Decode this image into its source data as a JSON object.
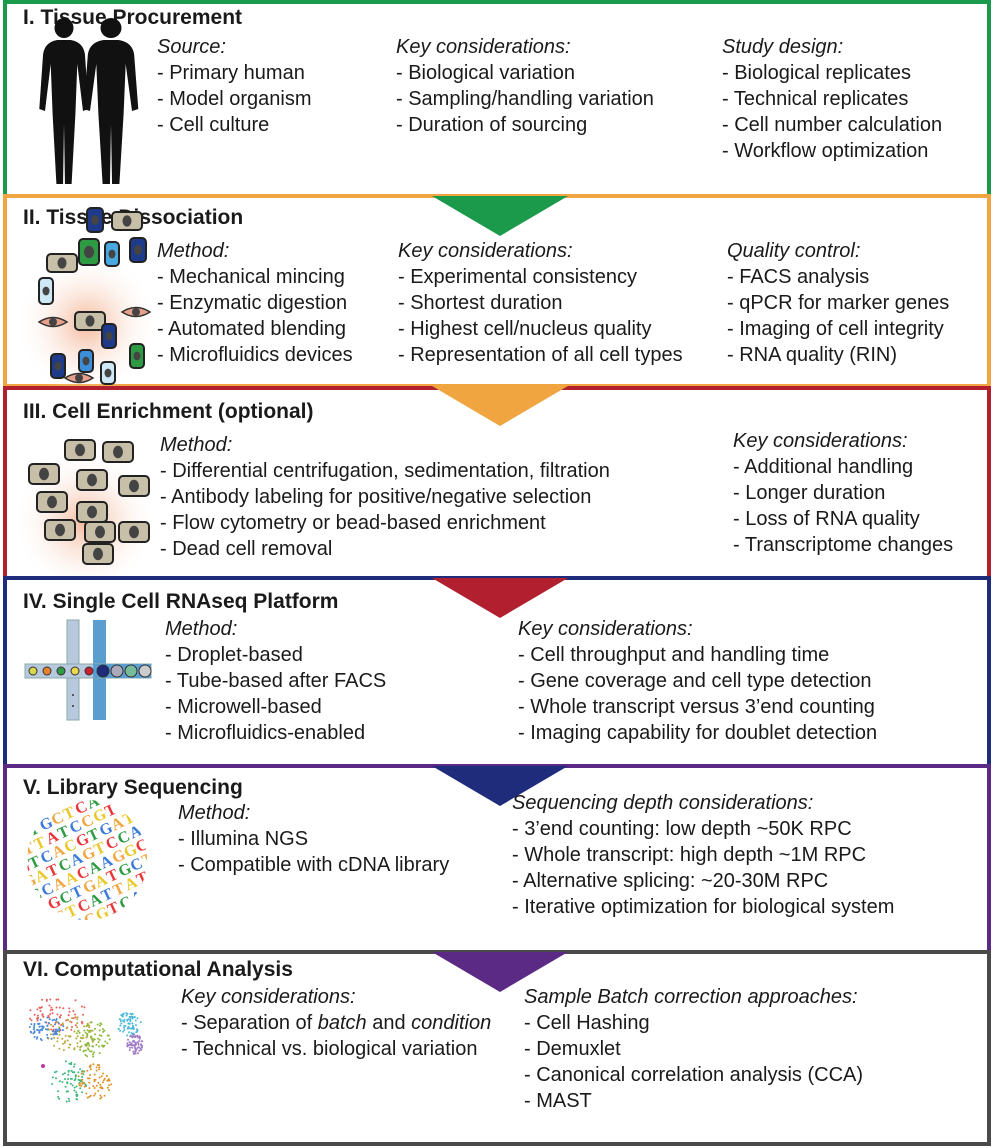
{
  "colors": {
    "s1": "#1b9a4b",
    "s2": "#f0a540",
    "s3": "#b2202f",
    "s4": "#1f2b7b",
    "s5": "#5a2a85",
    "s6": "#4a4a4a"
  },
  "sections": [
    {
      "title": "I. Tissue Procurement",
      "icon": "human-silhouettes-icon",
      "columns": [
        {
          "label": "Source:",
          "items": [
            "- Primary human",
            "- Model organism",
            "- Cell culture"
          ]
        },
        {
          "label": "Key considerations:",
          "items": [
            "- Biological variation",
            "- Sampling/handling variation",
            "- Duration of sourcing"
          ]
        },
        {
          "label": "Study design:",
          "items": [
            "- Biological replicates",
            "- Technical replicates",
            "- Cell number calculation",
            "- Workflow optimization"
          ]
        }
      ]
    },
    {
      "title": "II. Tissue Dissociation",
      "icon": "dissociated-cells-icon",
      "columns": [
        {
          "label": "Method:",
          "items": [
            "- Mechanical mincing",
            "- Enzymatic digestion",
            "- Automated blending",
            "- Microfluidics devices"
          ]
        },
        {
          "label": "Key considerations:",
          "items": [
            "- Experimental consistency",
            "- Shortest duration",
            "- Highest cell/nucleus quality",
            "- Representation of all cell types"
          ]
        },
        {
          "label": "Quality control:",
          "items": [
            "- FACS analysis",
            "- qPCR for marker genes",
            "- Imaging of cell integrity",
            "- RNA quality (RIN)"
          ]
        }
      ]
    },
    {
      "title": "III. Cell Enrichment (optional)",
      "icon": "enriched-cells-icon",
      "columns": [
        {
          "label": "Method:",
          "items": [
            "- Differential centrifugation, sedimentation, filtration",
            "- Antibody labeling for positive/negative selection",
            "- Flow cytometry or bead-based enrichment",
            "- Dead cell removal"
          ]
        },
        {
          "label": "Key considerations:",
          "items": [
            "- Additional handling",
            "- Longer duration",
            "- Loss of RNA quality",
            "- Transcriptome changes"
          ]
        }
      ]
    },
    {
      "title": "IV. Single Cell RNAseq Platform",
      "icon": "microfluidic-channel-icon",
      "columns": [
        {
          "label": "Method:",
          "items": [
            "- Droplet-based",
            "- Tube-based after FACS",
            "- Microwell-based",
            "- Microfluidics-enabled"
          ]
        },
        {
          "label": "Key considerations:",
          "items": [
            "- Cell throughput and handling time",
            "- Gene coverage and cell type detection",
            "- Whole transcript versus 3’end counting",
            "- Imaging capability for doublet detection"
          ]
        }
      ]
    },
    {
      "title": "V. Library Sequencing",
      "icon": "dna-sequence-icon",
      "columns": [
        {
          "label": "Method:",
          "items": [
            "- Illumina NGS",
            "- Compatible with cDNA library"
          ]
        },
        {
          "label": "Sequencing depth considerations:",
          "items": [
            "- 3’end counting: low depth ~50K RPC",
            "- Whole transcript: high depth ~1M RPC",
            "- Alternative splicing: ~20-30M RPC",
            "- Iterative optimization for biological system"
          ]
        }
      ]
    },
    {
      "title": "VI. Computational Analysis",
      "icon": "tsne-scatter-icon",
      "columns": [
        {
          "label": "Key considerations:",
          "items": [
            "- Separation of batch and condition",
            "- Technical vs. biological variation"
          ]
        },
        {
          "label": "Sample Batch correction approaches:",
          "items": [
            "- Cell Hashing",
            "- Demuxlet",
            "- Canonical correlation analysis (CCA)",
            "- MAST"
          ]
        }
      ]
    }
  ]
}
